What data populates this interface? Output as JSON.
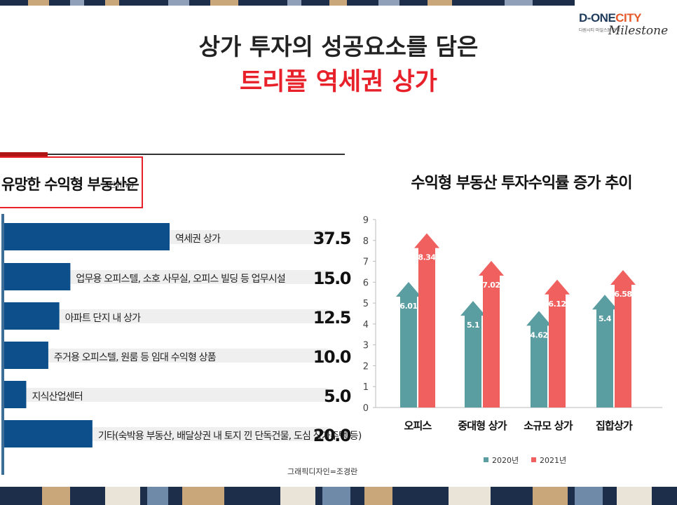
{
  "header": {
    "title_line1": "상가 투자의 성공요소를 담은",
    "title_line2": "트리플 역세권 상가",
    "logo_brand_a": "D-ONE",
    "logo_brand_b": "CITY",
    "logo_sub": "다원시티 마일스톤 만의",
    "logo_script": "Milestone"
  },
  "left_panel": {
    "title": "유망한 수익형 부동산은",
    "unit": "(단위:%)",
    "credit": "그래픽디자인=조경란"
  },
  "chart_data": [
    {
      "type": "bar",
      "orientation": "horizontal",
      "title": "유망한 수익형 부동산은",
      "unit": "(단위:%)",
      "categories": [
        "역세권 상가",
        "업무용 오피스텔, 소호 사무실, 오피스 빌딩 등 업무시설",
        "아파트 단지 내 상가",
        "주거용 오피스텔, 원룸 등 임대 수익형 상품",
        "지식산업센터",
        "기타(숙박용 부동산, 배달상권 내 토지 낀 단독건물, 도심 상가주택 등)"
      ],
      "values": [
        37.5,
        15.0,
        12.5,
        10.0,
        5.0,
        20.0
      ],
      "value_labels": [
        "37.5",
        "15.0",
        "12.5",
        "10.0",
        "5.0",
        "20.0"
      ],
      "xlim": [
        0,
        40
      ],
      "bar_color": "#0d4f8b",
      "track_color": "#efefef"
    },
    {
      "type": "bar",
      "title": "수익형 부동산 투자수익률 증가 추이",
      "categories": [
        "오피스",
        "중대형 상가",
        "소규모 상가",
        "집합상가"
      ],
      "series": [
        {
          "name": "2020년",
          "values": [
            6.01,
            5.1,
            4.62,
            5.4
          ],
          "labels": [
            "6.01",
            "5.1",
            "4.62",
            "5.4"
          ],
          "color": "#5b9ea1"
        },
        {
          "name": "2021년",
          "values": [
            8.34,
            7.02,
            6.12,
            6.58
          ],
          "labels": [
            "8.34",
            "7.02",
            "6.12",
            "6.58"
          ],
          "color": "#f0605e"
        }
      ],
      "ylim": [
        0,
        9
      ],
      "yticks": [
        "0",
        "1",
        "2",
        "3",
        "4",
        "5",
        "6",
        "7",
        "8",
        "9"
      ],
      "grid": false,
      "legend_position": "bottom"
    }
  ]
}
